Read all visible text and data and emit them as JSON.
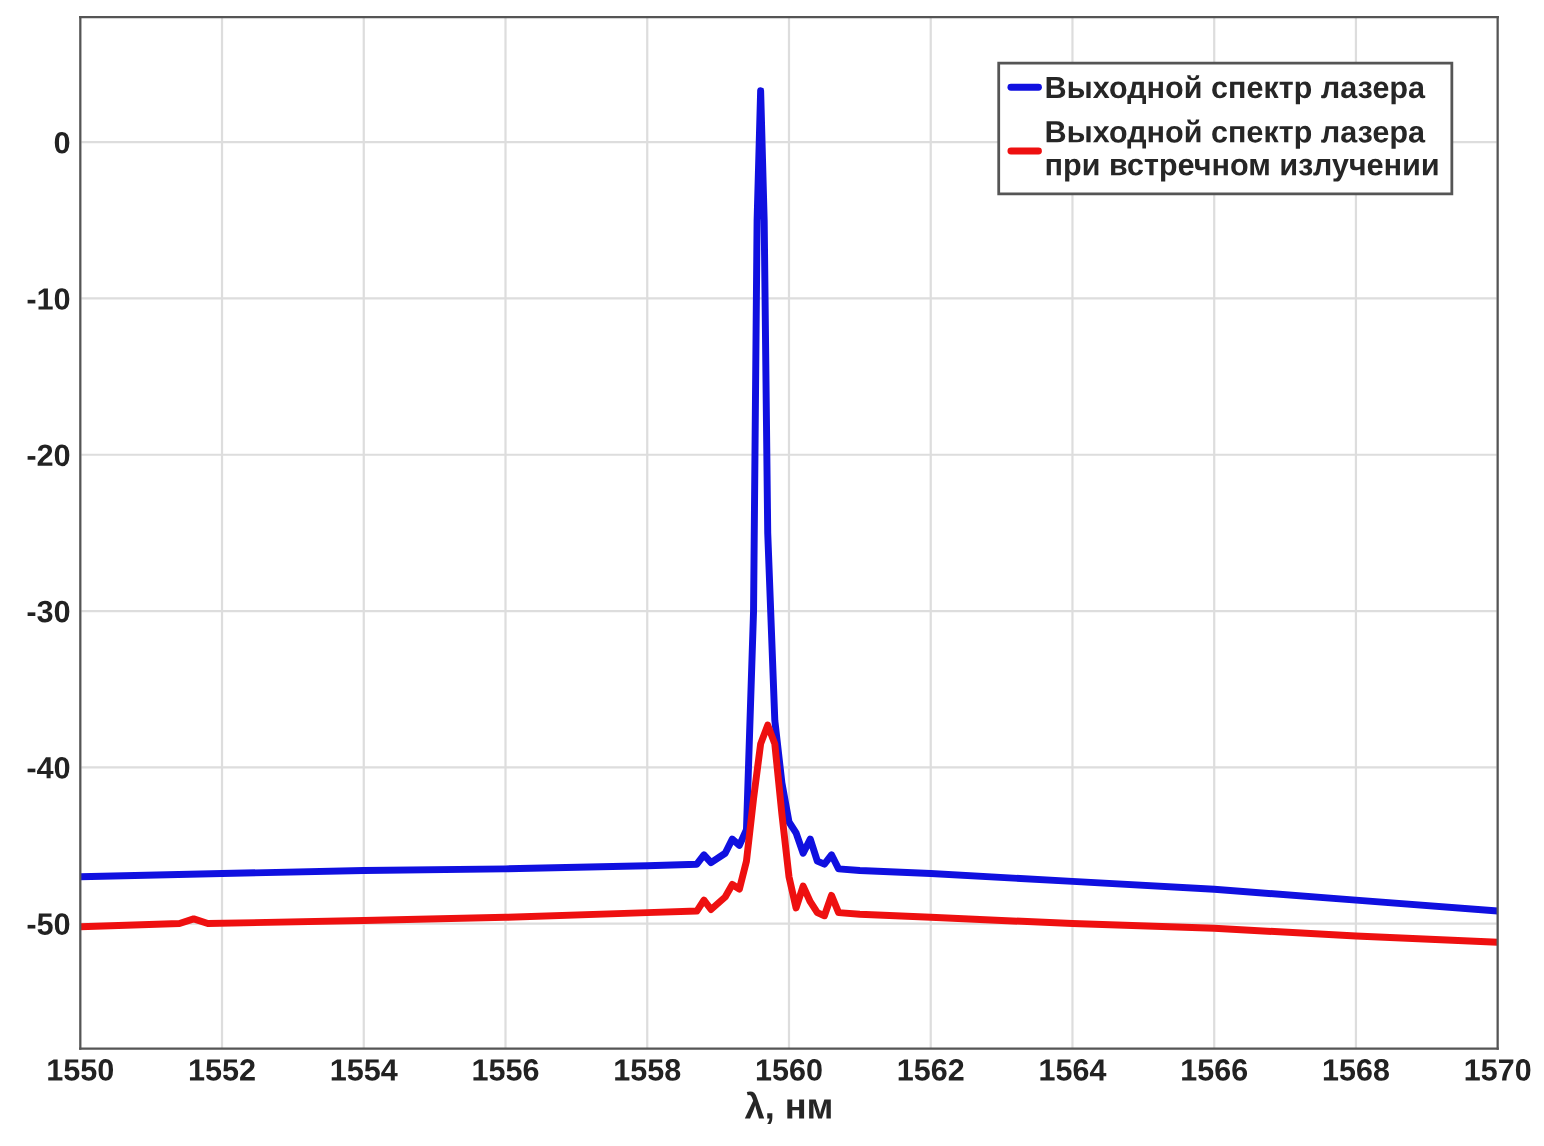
{
  "chart_data": {
    "type": "line",
    "xlabel": "λ, нм",
    "xlim": [
      1550,
      1570
    ],
    "xticks": [
      1550,
      1552,
      1554,
      1556,
      1558,
      1560,
      1562,
      1564,
      1566,
      1568,
      1570
    ],
    "ylim": [
      -58,
      8
    ],
    "yticks": [
      -50,
      -40,
      -30,
      -20,
      -10,
      0
    ],
    "grid": true,
    "legend": "top right",
    "series": [
      {
        "name": "Выходной спектр лазера",
        "color": "#1010e0",
        "x": [
          1550,
          1552,
          1554,
          1556,
          1558,
          1558.7,
          1558.8,
          1558.9,
          1559.1,
          1559.2,
          1559.3,
          1559.4,
          1559.5,
          1559.55,
          1559.6,
          1559.65,
          1559.7,
          1559.8,
          1559.9,
          1560.0,
          1560.1,
          1560.2,
          1560.3,
          1560.4,
          1560.5,
          1560.6,
          1560.7,
          1561,
          1562,
          1564,
          1566,
          1568,
          1570
        ],
        "values": [
          -47.0,
          -46.8,
          -46.6,
          -46.5,
          -46.3,
          -46.2,
          -45.6,
          -46.1,
          -45.5,
          -44.6,
          -45.0,
          -44.0,
          -30,
          -5,
          3.3,
          -5,
          -25,
          -37,
          -41,
          -43.5,
          -44.2,
          -45.5,
          -44.6,
          -46.0,
          -46.2,
          -45.6,
          -46.5,
          -46.6,
          -46.8,
          -47.3,
          -47.8,
          -48.5,
          -49.2
        ]
      },
      {
        "name": "Выходной спектр лазера\nпри встречном излучении",
        "color": "#ee1010",
        "x": [
          1550,
          1551.4,
          1551.6,
          1551.8,
          1554,
          1556,
          1558,
          1558.7,
          1558.8,
          1558.9,
          1559.1,
          1559.2,
          1559.3,
          1559.4,
          1559.5,
          1559.6,
          1559.7,
          1559.8,
          1559.9,
          1560.0,
          1560.1,
          1560.2,
          1560.3,
          1560.4,
          1560.5,
          1560.6,
          1560.7,
          1561,
          1562,
          1564,
          1566,
          1568,
          1570
        ],
        "values": [
          -50.2,
          -50.0,
          -49.7,
          -50.0,
          -49.8,
          -49.6,
          -49.3,
          -49.2,
          -48.5,
          -49.1,
          -48.3,
          -47.5,
          -47.8,
          -46,
          -42,
          -38.5,
          -37.3,
          -38.5,
          -43,
          -47,
          -49.0,
          -47.6,
          -48.6,
          -49.3,
          -49.5,
          -48.2,
          -49.3,
          -49.4,
          -49.6,
          -50.0,
          -50.3,
          -50.8,
          -51.2
        ]
      }
    ]
  }
}
